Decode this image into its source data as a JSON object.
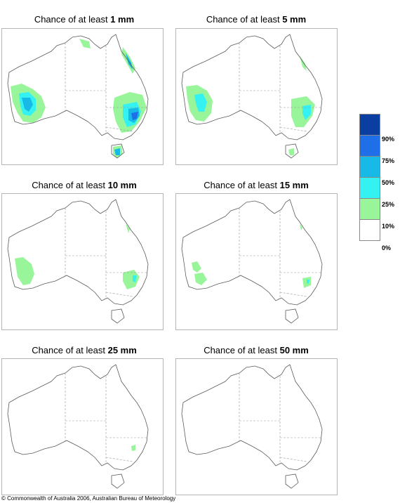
{
  "panels": [
    {
      "prefix": "Chance of at least ",
      "amount": "1 mm"
    },
    {
      "prefix": "Chance of at least ",
      "amount": "5 mm"
    },
    {
      "prefix": "Chance of at least ",
      "amount": "10 mm"
    },
    {
      "prefix": "Chance of at least ",
      "amount": "15 mm"
    },
    {
      "prefix": "Chance of at least ",
      "amount": "25 mm"
    },
    {
      "prefix": "Chance of at least ",
      "amount": "50 mm"
    }
  ],
  "legend": {
    "labels": [
      "90%",
      "75%",
      "50%",
      "25%",
      "10%",
      "0%"
    ],
    "colors": [
      "#0a3ea0",
      "#1f6fe8",
      "#17b9e6",
      "#34f2f2",
      "#99f59a",
      "#ffffff"
    ]
  },
  "copyright": "© Commonwealth of Australia 2006, Australian Bureau of Meteorology"
}
